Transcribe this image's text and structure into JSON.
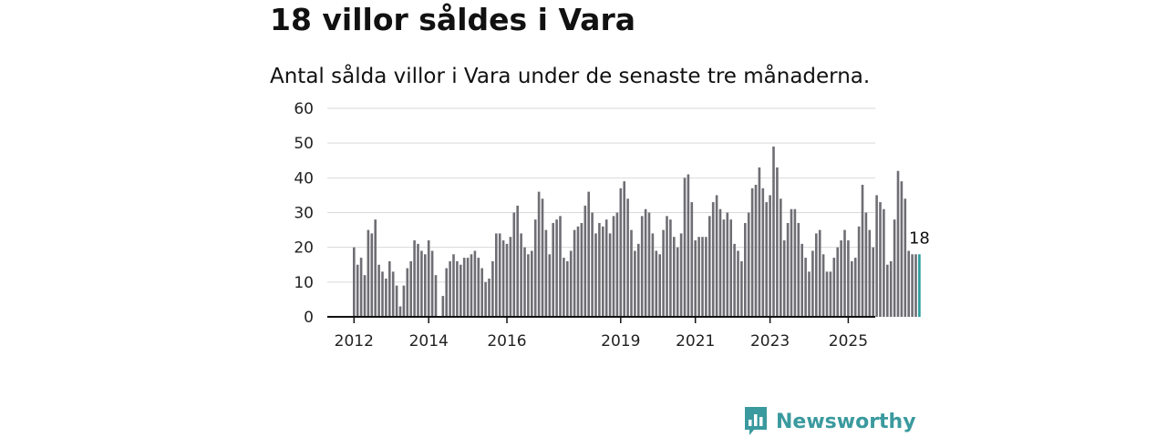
{
  "header": {
    "title": "18 villor såldes i Vara",
    "subtitle": "Antal sålda villor i Vara under de senaste tre månaderna."
  },
  "brand": {
    "name": "Newsworthy",
    "color": "#3a9a9e",
    "icon": "newsworthy-logo-icon"
  },
  "colors": {
    "bar": "#6e6e74",
    "highlight": "#2a9d9c",
    "grid": "#d9d9d9",
    "axis": "#111111"
  },
  "chart_data": {
    "type": "bar",
    "title": "18 villor såldes i Vara",
    "subtitle": "Antal sålda villor i Vara under de senaste tre månaderna.",
    "xlabel": "",
    "ylabel": "",
    "ylim": [
      0,
      60
    ],
    "yticks": [
      "0",
      "10",
      "20",
      "30",
      "40",
      "50",
      "60"
    ],
    "xticks": [
      {
        "label": "2012",
        "index": 0
      },
      {
        "label": "2014",
        "index": 21
      },
      {
        "label": "2016",
        "index": 43
      },
      {
        "label": "2019",
        "index": 75
      },
      {
        "label": "2021",
        "index": 96
      },
      {
        "label": "2023",
        "index": 117
      },
      {
        "label": "2025",
        "index": 139
      }
    ],
    "grid": true,
    "highlight_label": "18",
    "values": [
      20,
      15,
      17,
      12,
      25,
      24,
      28,
      15,
      13,
      11,
      16,
      13,
      9,
      3,
      9,
      14,
      16,
      22,
      21,
      19,
      18,
      22,
      19,
      12,
      0,
      6,
      14,
      16,
      18,
      16,
      15,
      17,
      17,
      18,
      19,
      17,
      14,
      10,
      11,
      16,
      24,
      24,
      22,
      21,
      23,
      30,
      32,
      24,
      20,
      18,
      19,
      28,
      36,
      34,
      25,
      18,
      27,
      28,
      29,
      17,
      16,
      19,
      25,
      26,
      27,
      32,
      36,
      30,
      24,
      27,
      26,
      28,
      24,
      29,
      30,
      37,
      39,
      34,
      25,
      19,
      21,
      29,
      31,
      30,
      24,
      19,
      18,
      25,
      29,
      28,
      23,
      20,
      24,
      40,
      41,
      33,
      22,
      23,
      23,
      23,
      29,
      33,
      35,
      31,
      28,
      30,
      28,
      21,
      19,
      16,
      27,
      30,
      37,
      38,
      43,
      37,
      33,
      35,
      49,
      43,
      34,
      22,
      27,
      31,
      31,
      27,
      21,
      17,
      13,
      19,
      24,
      25,
      18,
      13,
      13,
      17,
      20,
      22,
      25,
      22,
      16,
      17,
      26,
      38,
      30,
      25,
      20,
      35,
      33,
      31,
      15,
      16,
      28,
      42,
      39,
      34,
      19,
      18,
      18,
      18
    ],
    "highlight_count": 1
  }
}
